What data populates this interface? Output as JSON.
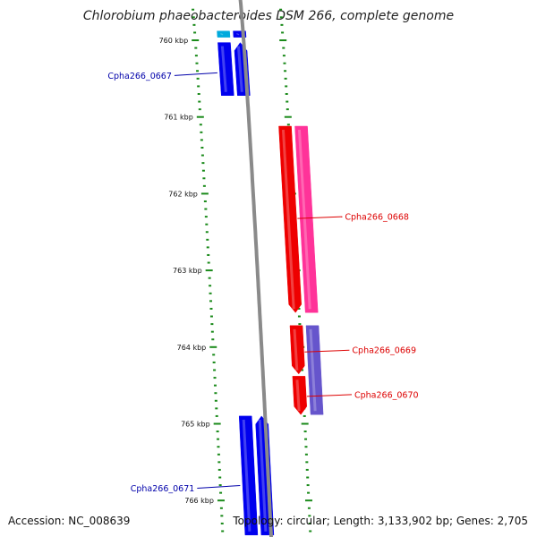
{
  "title": "Chlorobium phaeobacteroides DSM 266, complete genome",
  "footer": {
    "accession": "Accession: NC_008639",
    "summary": "Topology: circular; Length: 3,133,902 bp; Genes: 2,705"
  },
  "colors": {
    "background": "#ffffff",
    "backbone": "#8a8a8a",
    "tick": "#1a8a1a",
    "forward_gene": "#0000ee",
    "forward_gene_light": "#9999ff",
    "reverse_gene": "#ee0000",
    "reverse_gene_pink": "#ff3399",
    "reverse_gene_violet": "#6655cc",
    "cyan_gene": "#00aadd",
    "label_blue": "#0000aa",
    "label_red": "#dd0000"
  },
  "chart_data": {
    "type": "genome-map",
    "title": "Chlorobium phaeobacteroides DSM 266, complete genome",
    "unit": "kbp",
    "range_kbp": [
      759.88,
      766.45
    ],
    "ticks": [
      {
        "pos": 760,
        "label": "760 kbp"
      },
      {
        "pos": 761,
        "label": "761 kbp"
      },
      {
        "pos": 762,
        "label": "762 kbp"
      },
      {
        "pos": 763,
        "label": "763 kbp"
      },
      {
        "pos": 764,
        "label": "764 kbp"
      },
      {
        "pos": 765,
        "label": "765 kbp"
      },
      {
        "pos": 766,
        "label": "766 kbp"
      }
    ],
    "features": [
      {
        "id": "cyan-top",
        "lane": "fwd2",
        "start": 759.88,
        "end": 759.96,
        "color": "cyan_gene",
        "arrow": false
      },
      {
        "id": "blue-top",
        "lane": "fwd1",
        "start": 759.88,
        "end": 759.96,
        "color": "forward_gene",
        "arrow": false
      },
      {
        "id": "fwd-760a",
        "lane": "fwd2",
        "start": 760.03,
        "end": 760.72,
        "color": "forward_gene",
        "arrow": false
      },
      {
        "id": "fwd-760b",
        "lane": "fwd1",
        "start": 760.03,
        "end": 760.72,
        "color": "forward_gene",
        "arrow": true
      },
      {
        "id": "gene-0668a",
        "lane": "rev1",
        "start": 761.12,
        "end": 763.55,
        "color": "reverse_gene",
        "arrow": true
      },
      {
        "id": "gene-0668b",
        "lane": "rev2",
        "start": 761.12,
        "end": 763.55,
        "color": "reverse_gene_pink",
        "arrow": false
      },
      {
        "id": "gene-0669",
        "lane": "rev1",
        "start": 763.72,
        "end": 764.35,
        "color": "reverse_gene",
        "arrow": true
      },
      {
        "id": "gene-0670",
        "lane": "rev1",
        "start": 764.38,
        "end": 764.88,
        "color": "reverse_gene",
        "arrow": true
      },
      {
        "id": "gene-0669-0670-violet",
        "lane": "rev2",
        "start": 763.72,
        "end": 764.88,
        "color": "reverse_gene_violet",
        "arrow": false
      },
      {
        "id": "gene-0671a",
        "lane": "fwd2",
        "start": 764.9,
        "end": 766.45,
        "color": "forward_gene",
        "arrow": false
      },
      {
        "id": "gene-0671b",
        "lane": "fwd1",
        "start": 764.9,
        "end": 766.45,
        "color": "forward_gene",
        "arrow": true
      }
    ],
    "labels": [
      {
        "text": "Cpha266_0667",
        "side": "left",
        "pos": 760.46,
        "color": "label_blue"
      },
      {
        "text": "Cpha266_0668",
        "side": "right",
        "pos": 762.3,
        "color": "label_red"
      },
      {
        "text": "Cpha266_0669",
        "side": "right",
        "pos": 764.04,
        "color": "label_red"
      },
      {
        "text": "Cpha266_0670",
        "side": "right",
        "pos": 764.62,
        "color": "label_red"
      },
      {
        "text": "Cpha266_0671",
        "side": "left",
        "pos": 765.84,
        "color": "label_blue"
      }
    ]
  }
}
